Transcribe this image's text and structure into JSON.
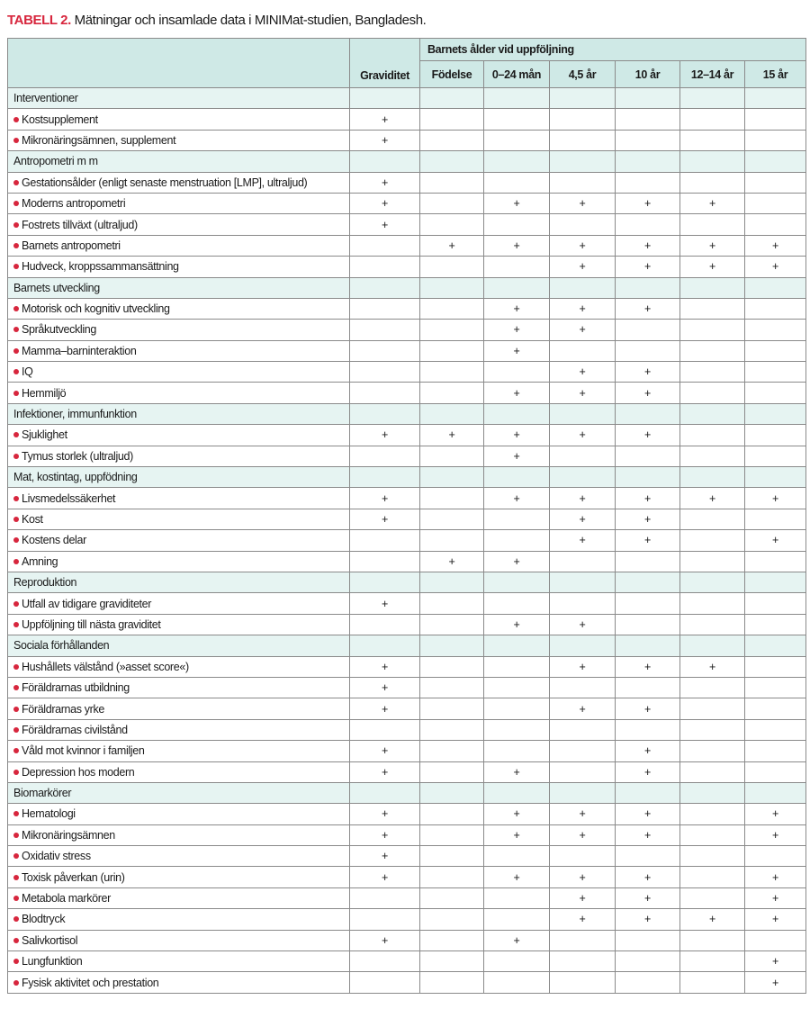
{
  "title": {
    "label": "TABELL 2.",
    "text": "Mätningar och insamlade data i MINIMat-studien, Bangladesh."
  },
  "colors": {
    "accent": "#d7263d",
    "header_bg": "#cfe9e6",
    "section_bg": "#e6f4f2"
  },
  "header": {
    "group": "Barnets ålder vid uppföljning",
    "columns": [
      "Graviditet",
      "Födelse",
      "0–24 mån",
      "4,5 år",
      "10 år",
      "12–14 år",
      "15 år"
    ]
  },
  "rows": [
    {
      "section": "Interventioner"
    },
    {
      "label": "Kostsupplement",
      "cells": [
        "+",
        "",
        "",
        "",
        "",
        "",
        ""
      ]
    },
    {
      "label": "Mikronäringsämnen, supplement",
      "cells": [
        "+",
        "",
        "",
        "",
        "",
        "",
        ""
      ]
    },
    {
      "section": "Antropometri m m"
    },
    {
      "label": "Gestationsålder (enligt senaste menstruation [LMP], ultraljud)",
      "cells": [
        "+",
        "",
        "",
        "",
        "",
        "",
        ""
      ]
    },
    {
      "label": "Moderns antropometri",
      "cells": [
        "+",
        "",
        "+",
        "+",
        "+",
        "+",
        ""
      ]
    },
    {
      "label": "Fostrets tillväxt (ultraljud)",
      "cells": [
        "+",
        "",
        "",
        "",
        "",
        "",
        ""
      ]
    },
    {
      "label": "Barnets antropometri",
      "cells": [
        "",
        "+",
        "+",
        "+",
        "+",
        "+",
        "+"
      ]
    },
    {
      "label": "Hudveck, kroppssammansättning",
      "cells": [
        "",
        "",
        "",
        "+",
        "+",
        "+",
        "+"
      ]
    },
    {
      "section": "Barnets utveckling"
    },
    {
      "label": "Motorisk och kognitiv utveckling",
      "cells": [
        "",
        "",
        "+",
        "+",
        "+",
        "",
        ""
      ]
    },
    {
      "label": "Språkutveckling",
      "cells": [
        "",
        "",
        "+",
        "+",
        "",
        "",
        ""
      ]
    },
    {
      "label": "Mamma–barninteraktion",
      "cells": [
        "",
        "",
        "+",
        "",
        "",
        "",
        ""
      ]
    },
    {
      "label": "IQ",
      "cells": [
        "",
        "",
        "",
        "+",
        "+",
        "",
        ""
      ]
    },
    {
      "label": "Hemmiljö",
      "cells": [
        "",
        "",
        "+",
        "+",
        "+",
        "",
        ""
      ]
    },
    {
      "section": "Infektioner, immunfunktion"
    },
    {
      "label": "Sjuklighet",
      "cells": [
        "+",
        "+",
        "+",
        "+",
        "+",
        "",
        ""
      ]
    },
    {
      "label": "Tymus storlek (ultraljud)",
      "cells": [
        "",
        "",
        "+",
        "",
        "",
        "",
        ""
      ]
    },
    {
      "section": "Mat, kostintag, uppfödning"
    },
    {
      "label": "Livsmedelssäkerhet",
      "cells": [
        "+",
        "",
        "+",
        "+",
        "+",
        "+",
        "+"
      ]
    },
    {
      "label": "Kost",
      "cells": [
        "+",
        "",
        "",
        "+",
        "+",
        "",
        ""
      ]
    },
    {
      "label": "Kostens delar",
      "cells": [
        "",
        "",
        "",
        "+",
        "+",
        "",
        "+"
      ]
    },
    {
      "label": "Amning",
      "cells": [
        "",
        "+",
        "+",
        "",
        "",
        "",
        ""
      ]
    },
    {
      "section": "Reproduktion"
    },
    {
      "label": "Utfall av tidigare graviditeter",
      "cells": [
        "+",
        "",
        "",
        "",
        "",
        "",
        ""
      ]
    },
    {
      "label": "Uppföljning till nästa graviditet",
      "cells": [
        "",
        "",
        "+",
        "+",
        "",
        "",
        ""
      ]
    },
    {
      "section": "Sociala förhållanden"
    },
    {
      "label": "Hushållets välstånd (»asset score«)",
      "cells": [
        "+",
        "",
        "",
        "+",
        "+",
        "+",
        ""
      ]
    },
    {
      "label": "Föräldrarnas utbildning",
      "cells": [
        "+",
        "",
        "",
        "",
        "",
        "",
        ""
      ]
    },
    {
      "label": "Föräldrarnas yrke",
      "cells": [
        "+",
        "",
        "",
        "+",
        "+",
        "",
        ""
      ]
    },
    {
      "label": "Föräldrarnas civilstånd",
      "cells": [
        "",
        "",
        "",
        "",
        "",
        "",
        ""
      ]
    },
    {
      "label": "Våld mot kvinnor i familjen",
      "cells": [
        "+",
        "",
        "",
        "",
        "+",
        "",
        ""
      ]
    },
    {
      "label": "Depression hos modern",
      "cells": [
        "+",
        "",
        "+",
        "",
        "+",
        "",
        ""
      ]
    },
    {
      "section": "Biomarkörer"
    },
    {
      "label": "Hematologi",
      "cells": [
        "+",
        "",
        "+",
        "+",
        "+",
        "",
        "+"
      ]
    },
    {
      "label": "Mikronäringsämnen",
      "cells": [
        "+",
        "",
        "+",
        "+",
        "+",
        "",
        "+"
      ]
    },
    {
      "label": "Oxidativ stress",
      "cells": [
        "+",
        "",
        "",
        "",
        "",
        "",
        ""
      ]
    },
    {
      "label": "Toxisk påverkan (urin)",
      "cells": [
        "+",
        "",
        "+",
        "+",
        "+",
        "",
        "+"
      ]
    },
    {
      "label": "Metabola markörer",
      "cells": [
        "",
        "",
        "",
        "+",
        "+",
        "",
        "+"
      ]
    },
    {
      "label": "Blodtryck",
      "cells": [
        "",
        "",
        "",
        "+",
        "+",
        "+",
        "+"
      ]
    },
    {
      "label": "Salivkortisol",
      "cells": [
        "+",
        "",
        "+",
        "",
        "",
        "",
        ""
      ]
    },
    {
      "label": "Lungfunktion",
      "cells": [
        "",
        "",
        "",
        "",
        "",
        "",
        "+"
      ]
    },
    {
      "label": "Fysisk aktivitet och prestation",
      "cells": [
        "",
        "",
        "",
        "",
        "",
        "",
        "+"
      ]
    }
  ]
}
